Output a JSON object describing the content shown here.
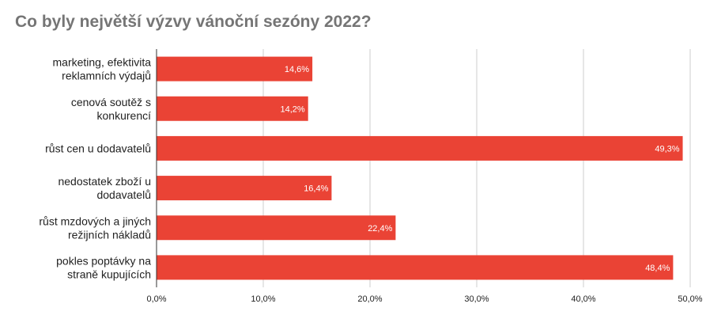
{
  "chart_data": {
    "type": "bar",
    "orientation": "horizontal",
    "title": "Co byly největší výzvy vánoční sezóny 2022?",
    "categories": [
      [
        "marketing, efektivita",
        "reklamních výdajů"
      ],
      [
        "cenová soutěž s",
        "konkurencí"
      ],
      [
        "růst cen u dodavatelů"
      ],
      [
        "nedostatek zboží u",
        "dodavatelů"
      ],
      [
        "růst mzdových a jiných",
        "režijních nákladů"
      ],
      [
        "pokles poptávky na",
        "straně kupujících"
      ]
    ],
    "values": [
      14.6,
      14.2,
      49.3,
      16.4,
      22.4,
      48.4
    ],
    "value_labels": [
      "14,6%",
      "14,2%",
      "49,3%",
      "16,4%",
      "22,4%",
      "48,4%"
    ],
    "x_ticks": [
      0,
      10,
      20,
      30,
      40,
      50
    ],
    "x_tick_labels": [
      "0,0%",
      "10,0%",
      "20,0%",
      "30,0%",
      "40,0%",
      "50,0%"
    ],
    "xlim": [
      0,
      50
    ],
    "grid": true,
    "legend": "none",
    "bar_color": "#EA4335",
    "grid_color": "#CCCCCC",
    "title_color": "#757575"
  }
}
